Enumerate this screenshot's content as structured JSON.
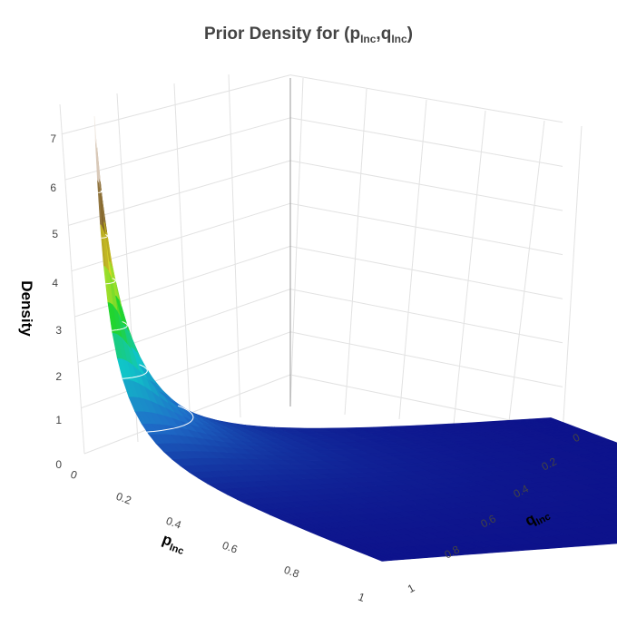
{
  "chart": {
    "title_prefix": "Prior Density for (p",
    "title_sub1": "Inc",
    "title_mid": ",q",
    "title_sub2": "Inc",
    "title_suffix": ")"
  },
  "chart_data": {
    "type": "surface3d",
    "title": "Prior Density for (pInc,qInc)",
    "xlabel": "pInc",
    "ylabel": "qInc",
    "zlabel": "Density",
    "x_ticks": [
      "0",
      "0.2",
      "0.4",
      "0.6",
      "0.8",
      "1"
    ],
    "y_ticks": [
      "0",
      "0.2",
      "0.4",
      "0.6",
      "0.8",
      "1"
    ],
    "z_ticks": [
      "0",
      "1",
      "2",
      "3",
      "4",
      "5",
      "6",
      "7"
    ],
    "xlim": [
      0,
      1
    ],
    "ylim": [
      0,
      1
    ],
    "zlim": [
      0,
      7.7
    ],
    "peak": {
      "x": 0,
      "y": 0,
      "z": 7.7
    },
    "surface_slices": [
      {
        "x": 0.0,
        "z": [
          7.7,
          3.0,
          0.9,
          0.35,
          0.15,
          0.08,
          0.05,
          0.03,
          0.02,
          0.01,
          0.0
        ]
      },
      {
        "x": 0.1,
        "z": [
          3.0,
          1.8,
          0.7,
          0.3,
          0.14,
          0.07,
          0.04,
          0.03,
          0.02,
          0.01,
          0.0
        ]
      },
      {
        "x": 0.2,
        "z": [
          0.9,
          0.7,
          0.45,
          0.22,
          0.1,
          0.06,
          0.04,
          0.02,
          0.01,
          0.01,
          0.0
        ]
      },
      {
        "x": 0.3,
        "z": [
          0.35,
          0.3,
          0.22,
          0.14,
          0.08,
          0.05,
          0.03,
          0.02,
          0.01,
          0.0,
          0.0
        ]
      },
      {
        "x": 0.5,
        "z": [
          0.08,
          0.07,
          0.06,
          0.05,
          0.04,
          0.03,
          0.02,
          0.01,
          0.01,
          0.0,
          0.0
        ]
      },
      {
        "x": 1.0,
        "z": [
          0.0,
          0.0,
          0.0,
          0.0,
          0.0,
          0.0,
          0.0,
          0.0,
          0.0,
          0.0,
          0.0
        ]
      }
    ],
    "contour_levels": [
      1,
      2,
      3,
      4,
      5,
      6
    ],
    "colorscale": [
      "#0c0c87",
      "#1f6fc9",
      "#10c5c8",
      "#22d52a",
      "#e3e32a",
      "#7a5a18",
      "#d7c6b4",
      "#ffffff"
    ],
    "grid": true,
    "legend": "none"
  }
}
